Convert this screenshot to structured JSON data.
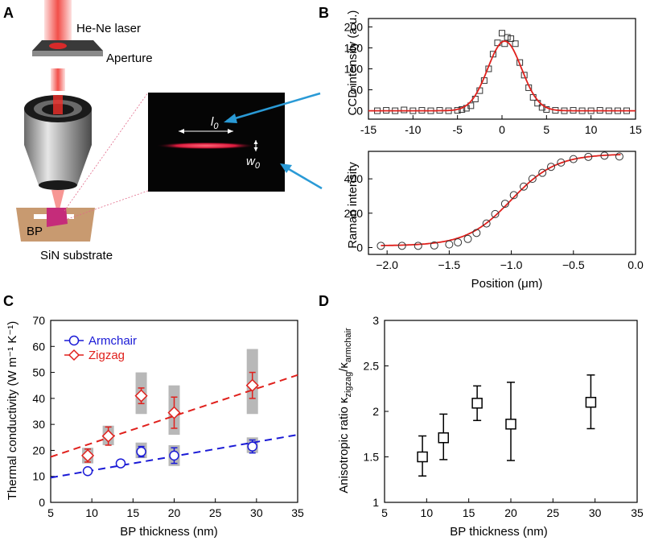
{
  "panels": {
    "a": {
      "letter": "A",
      "laser_label": "He-Ne laser",
      "aperture_label": "Aperture",
      "bp_label": "BP",
      "substrate_label": "SiN substrate",
      "inset_l0_base": "l",
      "inset_l0_sub": "0",
      "inset_w0_base": "w",
      "inset_w0_sub": "0"
    },
    "b": {
      "letter": "B"
    },
    "c": {
      "letter": "C"
    },
    "d": {
      "letter": "D"
    }
  },
  "colors": {
    "armchair": "#1a1ad6",
    "zigzag": "#e0201c",
    "fit": "#e0201c",
    "bar_band": "#b8b8b8",
    "laser": "#f0302a"
  },
  "chart_data": [
    {
      "id": "b-top",
      "type": "scatter",
      "title": "",
      "xlabel": "",
      "ylabel": "CCD intensity (a.u.)",
      "xlim": [
        -15,
        15
      ],
      "ylim": [
        -20,
        220
      ],
      "xticks": [
        -15,
        -10,
        -5,
        0,
        5,
        10,
        15
      ],
      "yticks": [
        0,
        50,
        100,
        150,
        200
      ],
      "fit": {
        "type": "gaussian",
        "amplitude": 166,
        "center": 0.3,
        "sigma": 1.9,
        "baseline": 0
      },
      "series": [
        {
          "name": "CCD data",
          "marker": "square",
          "x": [
            -14,
            -13,
            -12,
            -11,
            -10,
            -9,
            -8,
            -7,
            -6,
            -5,
            -4.5,
            -4,
            -3.5,
            -3,
            -2.5,
            -2,
            -1.5,
            -1,
            -0.5,
            0,
            0.3,
            0.6,
            1,
            1.5,
            2,
            2.5,
            3,
            3.5,
            4,
            4.5,
            5,
            6,
            7,
            8,
            9,
            10,
            11,
            12,
            13,
            14
          ],
          "y": [
            0,
            1,
            0,
            2,
            0,
            1,
            0,
            1,
            0,
            1,
            3,
            6,
            12,
            28,
            48,
            72,
            100,
            135,
            162,
            185,
            160,
            175,
            172,
            160,
            115,
            85,
            55,
            32,
            18,
            8,
            3,
            1,
            0,
            1,
            0,
            0,
            1,
            0,
            0,
            0
          ]
        }
      ]
    },
    {
      "id": "b-bottom",
      "type": "scatter",
      "title": "",
      "xlabel": "Position (μm)",
      "ylabel": "Raman intensity",
      "xlim": [
        -2.15,
        0
      ],
      "ylim": [
        -40,
        560
      ],
      "xticks": [
        -2.0,
        -1.5,
        -1.0,
        -0.5,
        0.0
      ],
      "xtick_labels": [
        "−2.0",
        "−1.5",
        "−1.0",
        "−0.5",
        "0.0"
      ],
      "yticks": [
        0,
        200,
        400
      ],
      "fit": {
        "type": "logistic",
        "lower": 10,
        "upper": 545,
        "center": -1.0,
        "scale": 0.18
      },
      "series": [
        {
          "name": "Raman data",
          "marker": "circle",
          "x": [
            -2.05,
            -1.88,
            -1.75,
            -1.62,
            -1.5,
            -1.43,
            -1.35,
            -1.28,
            -1.2,
            -1.13,
            -1.05,
            -0.98,
            -0.9,
            -0.83,
            -0.75,
            -0.68,
            -0.6,
            -0.5,
            -0.38,
            -0.25,
            -0.13
          ],
          "y": [
            10,
            10,
            10,
            12,
            18,
            30,
            50,
            85,
            140,
            195,
            255,
            305,
            355,
            400,
            435,
            470,
            495,
            515,
            528,
            535,
            530
          ]
        }
      ]
    },
    {
      "id": "c",
      "type": "scatter",
      "title": "",
      "xlabel": "BP thickness (nm)",
      "ylabel": "Thermal conductivity (W m⁻¹ K⁻¹)",
      "xlim": [
        5,
        35
      ],
      "ylim": [
        0,
        70
      ],
      "xticks": [
        5,
        10,
        15,
        20,
        25,
        30,
        35
      ],
      "yticks": [
        0,
        10,
        20,
        30,
        40,
        50,
        60,
        70
      ],
      "legend": {
        "position": "top-left",
        "entries": [
          "Armchair",
          "Zigzag"
        ]
      },
      "series": [
        {
          "name": "Armchair",
          "marker": "circle",
          "x": [
            9.5,
            13.5,
            16,
            20,
            29.5
          ],
          "y": [
            12,
            15,
            19.5,
            18,
            21.5
          ],
          "err": [
            0,
            0,
            2,
            3,
            2.5
          ],
          "band": [
            [
              0,
              0
            ],
            [
              0,
              0
            ],
            [
              17,
              23
            ],
            [
              14,
              22
            ],
            [
              19,
              25
            ]
          ]
        },
        {
          "name": "Zigzag",
          "marker": "diamond",
          "x": [
            9.5,
            12,
            16,
            20,
            29.5
          ],
          "y": [
            18,
            25.5,
            41,
            34.5,
            45
          ],
          "err": [
            2.5,
            3.5,
            3,
            6,
            5
          ],
          "band": [
            [
              15,
              21
            ],
            [
              22,
              29.5
            ],
            [
              34,
              50
            ],
            [
              26,
              45
            ],
            [
              34,
              59
            ]
          ]
        }
      ],
      "fits": [
        {
          "name": "Armchair fit",
          "x": [
            5,
            35
          ],
          "y": [
            9.5,
            26
          ]
        },
        {
          "name": "Zigzag fit",
          "x": [
            5,
            35
          ],
          "y": [
            17.5,
            49
          ]
        }
      ]
    },
    {
      "id": "d",
      "type": "scatter",
      "title": "",
      "xlabel": "BP thickness (nm)",
      "ylabel_main": "Anisotropic ratio κ",
      "ylabel_sub1": "zigzag",
      "ylabel_mid": "/κ",
      "ylabel_sub2": "armchair",
      "xlim": [
        5,
        35
      ],
      "ylim": [
        1,
        3
      ],
      "xticks": [
        5,
        10,
        15,
        20,
        25,
        30,
        35
      ],
      "yticks": [
        1,
        1.5,
        2,
        2.5,
        3
      ],
      "series": [
        {
          "name": "Anisotropic ratio",
          "marker": "square",
          "x": [
            9.5,
            12,
            16,
            20,
            29.5
          ],
          "y": [
            1.5,
            1.71,
            2.09,
            1.86,
            2.1
          ],
          "err_low": [
            0.21,
            0.24,
            0.19,
            0.4,
            0.29
          ],
          "err_high": [
            0.23,
            0.26,
            0.19,
            0.46,
            0.3
          ]
        }
      ]
    }
  ]
}
